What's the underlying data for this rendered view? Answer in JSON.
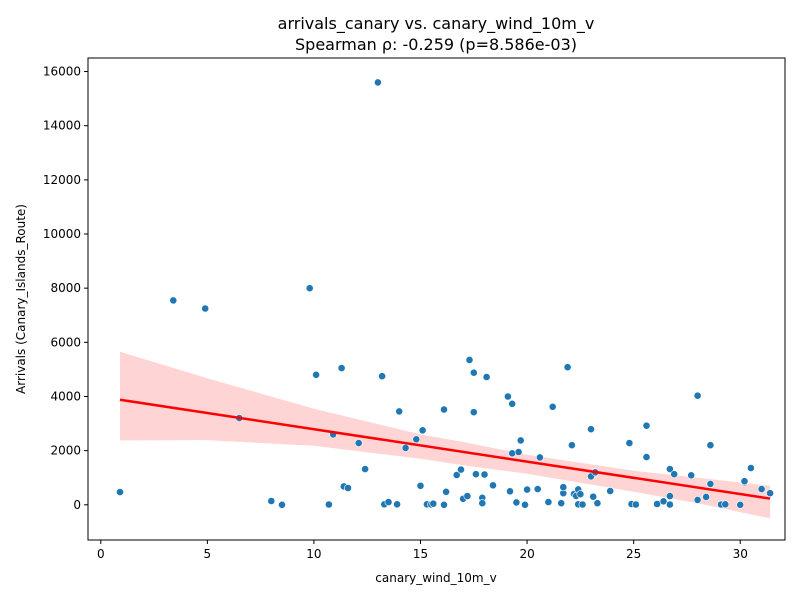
{
  "chart_data": {
    "type": "scatter",
    "title": "arrivals_canary vs. canary_wind_10m_v",
    "subtitle": "Spearman ρ: -0.259 (p=8.586e-03)",
    "xlabel": "canary_wind_10m_v",
    "ylabel": "Arrivals (Canary_Islands_Route)",
    "xlim": [
      -0.6,
      32.1
    ],
    "ylim": [
      -1300,
      16500
    ],
    "xticks": [
      0,
      5,
      10,
      15,
      20,
      25,
      30
    ],
    "yticks": [
      0,
      2000,
      4000,
      6000,
      8000,
      10000,
      12000,
      14000,
      16000
    ],
    "grid": false,
    "legend": "none",
    "colors": {
      "points": "#1f77b4",
      "regression": "#ff0000",
      "band": "#ffcccc"
    },
    "regression": {
      "x": [
        0.9,
        31.4
      ],
      "y": [
        3880,
        230
      ]
    },
    "confidence_band": {
      "x": [
        0.9,
        5,
        10,
        15,
        17,
        20,
        25,
        28,
        31.4
      ],
      "upper": [
        5650,
        4670,
        3550,
        2600,
        2320,
        1850,
        1260,
        1000,
        700
      ],
      "lower": [
        2380,
        2390,
        2180,
        1700,
        1460,
        1150,
        480,
        60,
        -500
      ]
    },
    "points": [
      {
        "x": 0.9,
        "y": 470
      },
      {
        "x": 3.4,
        "y": 7550
      },
      {
        "x": 4.9,
        "y": 7250
      },
      {
        "x": 6.5,
        "y": 3200
      },
      {
        "x": 8.0,
        "y": 140
      },
      {
        "x": 8.5,
        "y": 0
      },
      {
        "x": 9.8,
        "y": 8000
      },
      {
        "x": 10.1,
        "y": 4800
      },
      {
        "x": 10.7,
        "y": 10
      },
      {
        "x": 10.9,
        "y": 2600
      },
      {
        "x": 11.3,
        "y": 5050
      },
      {
        "x": 11.4,
        "y": 680
      },
      {
        "x": 11.6,
        "y": 620
      },
      {
        "x": 12.1,
        "y": 2280
      },
      {
        "x": 12.4,
        "y": 1320
      },
      {
        "x": 13.0,
        "y": 15600
      },
      {
        "x": 13.2,
        "y": 4750
      },
      {
        "x": 13.3,
        "y": 20
      },
      {
        "x": 13.5,
        "y": 100
      },
      {
        "x": 13.9,
        "y": 20
      },
      {
        "x": 14.0,
        "y": 3450
      },
      {
        "x": 14.3,
        "y": 2100
      },
      {
        "x": 14.8,
        "y": 2420
      },
      {
        "x": 15.0,
        "y": 700
      },
      {
        "x": 15.1,
        "y": 2750
      },
      {
        "x": 15.3,
        "y": 20
      },
      {
        "x": 15.5,
        "y": 10
      },
      {
        "x": 15.6,
        "y": 40
      },
      {
        "x": 16.1,
        "y": 3520
      },
      {
        "x": 16.2,
        "y": 480
      },
      {
        "x": 16.1,
        "y": 0
      },
      {
        "x": 16.7,
        "y": 1100
      },
      {
        "x": 16.9,
        "y": 1300
      },
      {
        "x": 17.0,
        "y": 220
      },
      {
        "x": 17.2,
        "y": 320
      },
      {
        "x": 17.3,
        "y": 5350
      },
      {
        "x": 17.5,
        "y": 3420
      },
      {
        "x": 17.5,
        "y": 4880
      },
      {
        "x": 17.6,
        "y": 1130
      },
      {
        "x": 17.9,
        "y": 260
      },
      {
        "x": 17.9,
        "y": 60
      },
      {
        "x": 18.0,
        "y": 1120
      },
      {
        "x": 18.1,
        "y": 4720
      },
      {
        "x": 18.4,
        "y": 720
      },
      {
        "x": 19.1,
        "y": 4000
      },
      {
        "x": 19.2,
        "y": 500
      },
      {
        "x": 19.3,
        "y": 3730
      },
      {
        "x": 19.3,
        "y": 1900
      },
      {
        "x": 19.5,
        "y": 90
      },
      {
        "x": 19.6,
        "y": 1950
      },
      {
        "x": 19.7,
        "y": 2380
      },
      {
        "x": 19.9,
        "y": 0
      },
      {
        "x": 20.0,
        "y": 560
      },
      {
        "x": 20.5,
        "y": 580
      },
      {
        "x": 20.6,
        "y": 1750
      },
      {
        "x": 21.0,
        "y": 100
      },
      {
        "x": 21.2,
        "y": 3620
      },
      {
        "x": 21.6,
        "y": 60
      },
      {
        "x": 21.7,
        "y": 430
      },
      {
        "x": 21.7,
        "y": 650
      },
      {
        "x": 21.9,
        "y": 5080
      },
      {
        "x": 22.1,
        "y": 2200
      },
      {
        "x": 22.2,
        "y": 400
      },
      {
        "x": 22.3,
        "y": 330
      },
      {
        "x": 22.4,
        "y": 570
      },
      {
        "x": 22.4,
        "y": 20
      },
      {
        "x": 22.5,
        "y": 390
      },
      {
        "x": 22.6,
        "y": 10
      },
      {
        "x": 23.0,
        "y": 1050
      },
      {
        "x": 23.0,
        "y": 2790
      },
      {
        "x": 23.1,
        "y": 300
      },
      {
        "x": 23.2,
        "y": 1200
      },
      {
        "x": 23.3,
        "y": 60
      },
      {
        "x": 23.9,
        "y": 510
      },
      {
        "x": 24.8,
        "y": 2280
      },
      {
        "x": 24.9,
        "y": 30
      },
      {
        "x": 25.1,
        "y": 10
      },
      {
        "x": 25.6,
        "y": 2920
      },
      {
        "x": 25.6,
        "y": 1760
      },
      {
        "x": 26.1,
        "y": 30
      },
      {
        "x": 26.4,
        "y": 130
      },
      {
        "x": 26.7,
        "y": 1320
      },
      {
        "x": 26.7,
        "y": 320
      },
      {
        "x": 26.7,
        "y": 10
      },
      {
        "x": 26.9,
        "y": 1130
      },
      {
        "x": 27.7,
        "y": 1090
      },
      {
        "x": 28.0,
        "y": 4030
      },
      {
        "x": 28.0,
        "y": 180
      },
      {
        "x": 28.4,
        "y": 290
      },
      {
        "x": 28.6,
        "y": 2200
      },
      {
        "x": 28.6,
        "y": 770
      },
      {
        "x": 29.1,
        "y": 10
      },
      {
        "x": 29.3,
        "y": 20
      },
      {
        "x": 30.0,
        "y": 0
      },
      {
        "x": 30.2,
        "y": 830
      },
      {
        "x": 30.2,
        "y": 870
      },
      {
        "x": 30.5,
        "y": 1360
      },
      {
        "x": 31.0,
        "y": 580
      },
      {
        "x": 31.4,
        "y": 430
      }
    ]
  }
}
